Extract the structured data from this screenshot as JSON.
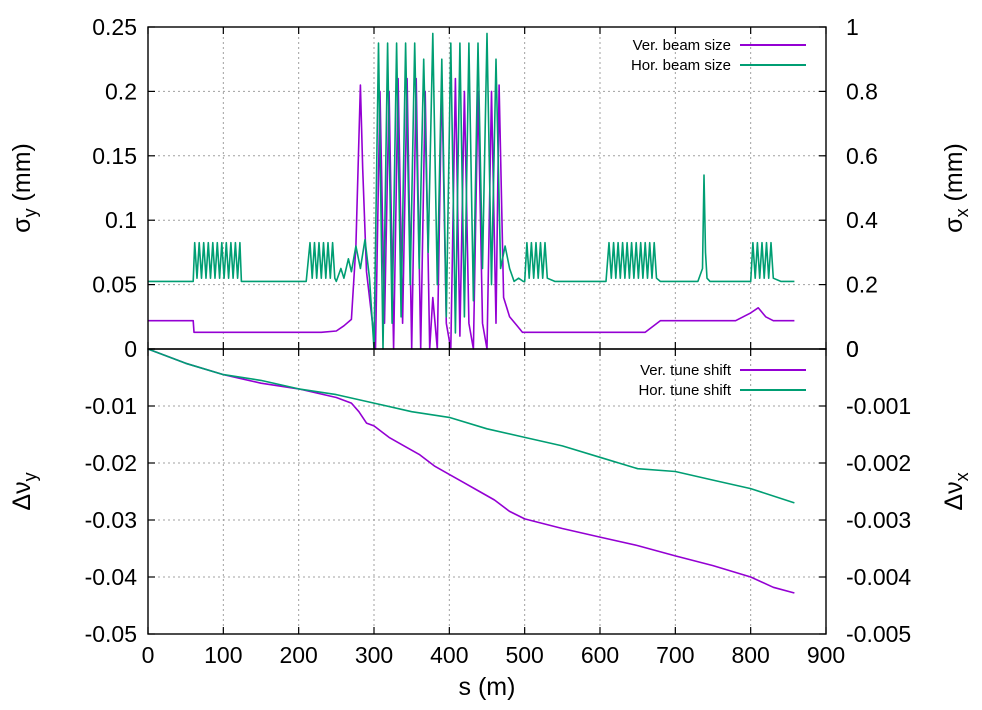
{
  "colors": {
    "ver": "#9400d3",
    "hor": "#009e73",
    "grid": "#a0a0a0",
    "axis": "#000000"
  },
  "chart_data": [
    {
      "type": "line",
      "panel": "top",
      "xlabel": "s (m)",
      "xlim": [
        0,
        900
      ],
      "x_ticks": [
        "0",
        "100",
        "200",
        "300",
        "400",
        "500",
        "600",
        "700",
        "800",
        "900"
      ],
      "x_tick_values": [
        0,
        100,
        200,
        300,
        400,
        500,
        600,
        700,
        800,
        900
      ],
      "y_left": {
        "label": "σ",
        "sub": "y",
        "unit": " (mm)",
        "lim": [
          0,
          0.25
        ],
        "ticks": [
          "0",
          "0.05",
          "0.1",
          "0.15",
          "0.2",
          "0.25"
        ],
        "tick_values": [
          0,
          0.05,
          0.1,
          0.15,
          0.2,
          0.25
        ]
      },
      "y_right": {
        "label": "σ",
        "sub": "x",
        "unit": " (mm)",
        "lim": [
          0,
          1
        ],
        "ticks": [
          "0",
          "0.2",
          "0.4",
          "0.6",
          "0.8",
          "1"
        ],
        "tick_values": [
          0,
          0.2,
          0.4,
          0.6,
          0.8,
          1.0
        ]
      },
      "grid": true,
      "legend_position": "top-right",
      "series": [
        {
          "name": "Ver. beam size",
          "axis": "left",
          "color": "ver",
          "x": [
            0,
            60,
            61,
            80,
            100,
            120,
            124,
            125,
            140,
            160,
            180,
            200,
            210,
            230,
            250,
            260,
            270,
            276,
            282,
            285,
            290,
            296,
            302,
            308,
            314,
            320,
            326,
            332,
            338,
            344,
            350,
            356,
            362,
            368,
            374,
            378,
            384,
            390,
            396,
            402,
            408,
            414,
            420,
            426,
            432,
            438,
            444,
            450,
            456,
            462,
            466,
            472,
            480,
            490,
            497,
            500,
            520,
            540,
            560,
            580,
            600,
            620,
            640,
            660,
            680,
            700,
            720,
            740,
            760,
            780,
            800,
            810,
            820,
            830,
            840,
            850,
            858
          ],
          "y": [
            0.022,
            0.022,
            0.013,
            0.013,
            0.013,
            0.013,
            0.013,
            0.013,
            0.013,
            0.013,
            0.013,
            0.013,
            0.013,
            0.013,
            0.014,
            0.018,
            0.023,
            0.08,
            0.205,
            0.14,
            0.06,
            0.03,
            0.0,
            0.2,
            0.02,
            0.2,
            0.0,
            0.21,
            0.02,
            0.21,
            0.0,
            0.21,
            0.0,
            0.2,
            0.0,
            0.04,
            0.0,
            0.21,
            0.02,
            0.0,
            0.21,
            0.01,
            0.2,
            0.02,
            0.0,
            0.2,
            0.02,
            0.0,
            0.2,
            0.02,
            0.205,
            0.04,
            0.025,
            0.018,
            0.013,
            0.013,
            0.013,
            0.013,
            0.013,
            0.013,
            0.013,
            0.013,
            0.013,
            0.013,
            0.022,
            0.022,
            0.022,
            0.022,
            0.022,
            0.022,
            0.028,
            0.032,
            0.025,
            0.022,
            0.022,
            0.022,
            0.022
          ]
        },
        {
          "name": "Hor. beam size",
          "axis": "right",
          "color": "hor",
          "x": [
            0,
            60,
            62,
            65,
            68,
            71,
            74,
            77,
            80,
            83,
            86,
            89,
            92,
            95,
            98,
            101,
            104,
            107,
            110,
            113,
            116,
            119,
            122,
            124,
            130,
            140,
            150,
            160,
            170,
            180,
            190,
            200,
            210,
            215,
            218,
            221,
            224,
            227,
            230,
            233,
            236,
            239,
            242,
            245,
            248,
            250,
            256,
            260,
            266,
            270,
            276,
            282,
            288,
            294,
            300,
            306,
            312,
            318,
            324,
            330,
            336,
            342,
            348,
            354,
            360,
            366,
            372,
            378,
            384,
            390,
            396,
            402,
            408,
            414,
            420,
            426,
            432,
            438,
            444,
            450,
            456,
            462,
            468,
            474,
            480,
            486,
            492,
            498,
            500,
            503,
            506,
            509,
            512,
            515,
            518,
            521,
            524,
            527,
            530,
            540,
            550,
            560,
            570,
            580,
            590,
            600,
            608,
            612,
            615,
            618,
            621,
            624,
            627,
            630,
            633,
            636,
            639,
            642,
            645,
            648,
            651,
            654,
            657,
            660,
            663,
            666,
            669,
            672,
            675,
            680,
            690,
            700,
            710,
            720,
            730,
            736,
            738,
            740,
            742,
            746,
            750,
            760,
            770,
            780,
            790,
            800,
            803,
            806,
            809,
            812,
            815,
            818,
            821,
            824,
            827,
            830,
            840,
            850,
            858
          ],
          "y": [
            0.21,
            0.21,
            0.33,
            0.22,
            0.33,
            0.22,
            0.33,
            0.22,
            0.33,
            0.22,
            0.33,
            0.22,
            0.33,
            0.22,
            0.33,
            0.22,
            0.33,
            0.22,
            0.33,
            0.22,
            0.33,
            0.22,
            0.33,
            0.21,
            0.21,
            0.21,
            0.21,
            0.21,
            0.21,
            0.21,
            0.21,
            0.21,
            0.21,
            0.33,
            0.22,
            0.33,
            0.22,
            0.33,
            0.22,
            0.33,
            0.22,
            0.33,
            0.22,
            0.33,
            0.22,
            0.21,
            0.25,
            0.22,
            0.28,
            0.24,
            0.32,
            0.25,
            0.34,
            0.22,
            0.0,
            0.95,
            0.0,
            0.95,
            0.08,
            0.95,
            0.1,
            0.95,
            0.2,
            0.95,
            0.25,
            0.9,
            0.3,
            0.98,
            0.2,
            0.9,
            0.1,
            0.95,
            0.05,
            0.95,
            0.1,
            0.95,
            0.15,
            0.95,
            0.25,
            0.98,
            0.2,
            0.9,
            0.25,
            0.32,
            0.25,
            0.21,
            0.22,
            0.21,
            0.21,
            0.33,
            0.22,
            0.33,
            0.22,
            0.33,
            0.22,
            0.33,
            0.22,
            0.33,
            0.22,
            0.21,
            0.21,
            0.21,
            0.21,
            0.21,
            0.21,
            0.21,
            0.21,
            0.33,
            0.22,
            0.33,
            0.22,
            0.33,
            0.22,
            0.33,
            0.22,
            0.33,
            0.22,
            0.33,
            0.22,
            0.33,
            0.22,
            0.33,
            0.22,
            0.33,
            0.22,
            0.33,
            0.22,
            0.33,
            0.22,
            0.21,
            0.21,
            0.21,
            0.21,
            0.21,
            0.21,
            0.25,
            0.54,
            0.3,
            0.22,
            0.21,
            0.21,
            0.21,
            0.21,
            0.21,
            0.21,
            0.21,
            0.33,
            0.22,
            0.33,
            0.22,
            0.33,
            0.22,
            0.33,
            0.22,
            0.33,
            0.22,
            0.21,
            0.21,
            0.21
          ]
        }
      ]
    },
    {
      "type": "line",
      "panel": "bottom",
      "xlabel": "s (m)",
      "xlim": [
        0,
        900
      ],
      "x_ticks": [
        "0",
        "100",
        "200",
        "300",
        "400",
        "500",
        "600",
        "700",
        "800",
        "900"
      ],
      "x_tick_values": [
        0,
        100,
        200,
        300,
        400,
        500,
        600,
        700,
        800,
        900
      ],
      "y_left": {
        "label": "Δν",
        "sub": "y",
        "unit": "",
        "lim": [
          -0.05,
          0
        ],
        "ticks": [
          "0",
          "-0.01",
          "-0.02",
          "-0.03",
          "-0.04",
          "-0.05"
        ],
        "tick_values": [
          0,
          -0.01,
          -0.02,
          -0.03,
          -0.04,
          -0.05
        ]
      },
      "y_right": {
        "label": "Δν",
        "sub": "x",
        "unit": "",
        "lim": [
          -0.005,
          0
        ],
        "ticks": [
          "0",
          "-0.001",
          "-0.002",
          "-0.003",
          "-0.004",
          "-0.005"
        ],
        "tick_values": [
          0,
          -0.001,
          -0.002,
          -0.003,
          -0.004,
          -0.005
        ]
      },
      "grid": true,
      "legend_position": "top-right",
      "series": [
        {
          "name": "Ver. tune shift",
          "axis": "left",
          "color": "ver",
          "x": [
            0,
            50,
            100,
            150,
            200,
            250,
            270,
            280,
            290,
            300,
            320,
            340,
            360,
            380,
            400,
            420,
            440,
            460,
            480,
            500,
            550,
            600,
            650,
            700,
            750,
            800,
            830,
            858
          ],
          "y": [
            0,
            -0.0025,
            -0.0045,
            -0.006,
            -0.007,
            -0.0085,
            -0.0095,
            -0.011,
            -0.013,
            -0.0135,
            -0.0155,
            -0.017,
            -0.0185,
            -0.0205,
            -0.022,
            -0.0235,
            -0.025,
            -0.0265,
            -0.0285,
            -0.0298,
            -0.0315,
            -0.033,
            -0.0345,
            -0.0363,
            -0.038,
            -0.04,
            -0.0418,
            -0.0428
          ]
        },
        {
          "name": "Hor. tune shift",
          "axis": "right",
          "color": "hor",
          "x": [
            0,
            50,
            100,
            150,
            200,
            250,
            300,
            350,
            400,
            450,
            500,
            550,
            600,
            650,
            700,
            750,
            800,
            858
          ],
          "y": [
            0,
            -0.00025,
            -0.00045,
            -0.00055,
            -0.0007,
            -0.0008,
            -0.00095,
            -0.0011,
            -0.0012,
            -0.0014,
            -0.00155,
            -0.0017,
            -0.0019,
            -0.0021,
            -0.00215,
            -0.0023,
            -0.00245,
            -0.0027
          ]
        }
      ]
    }
  ]
}
